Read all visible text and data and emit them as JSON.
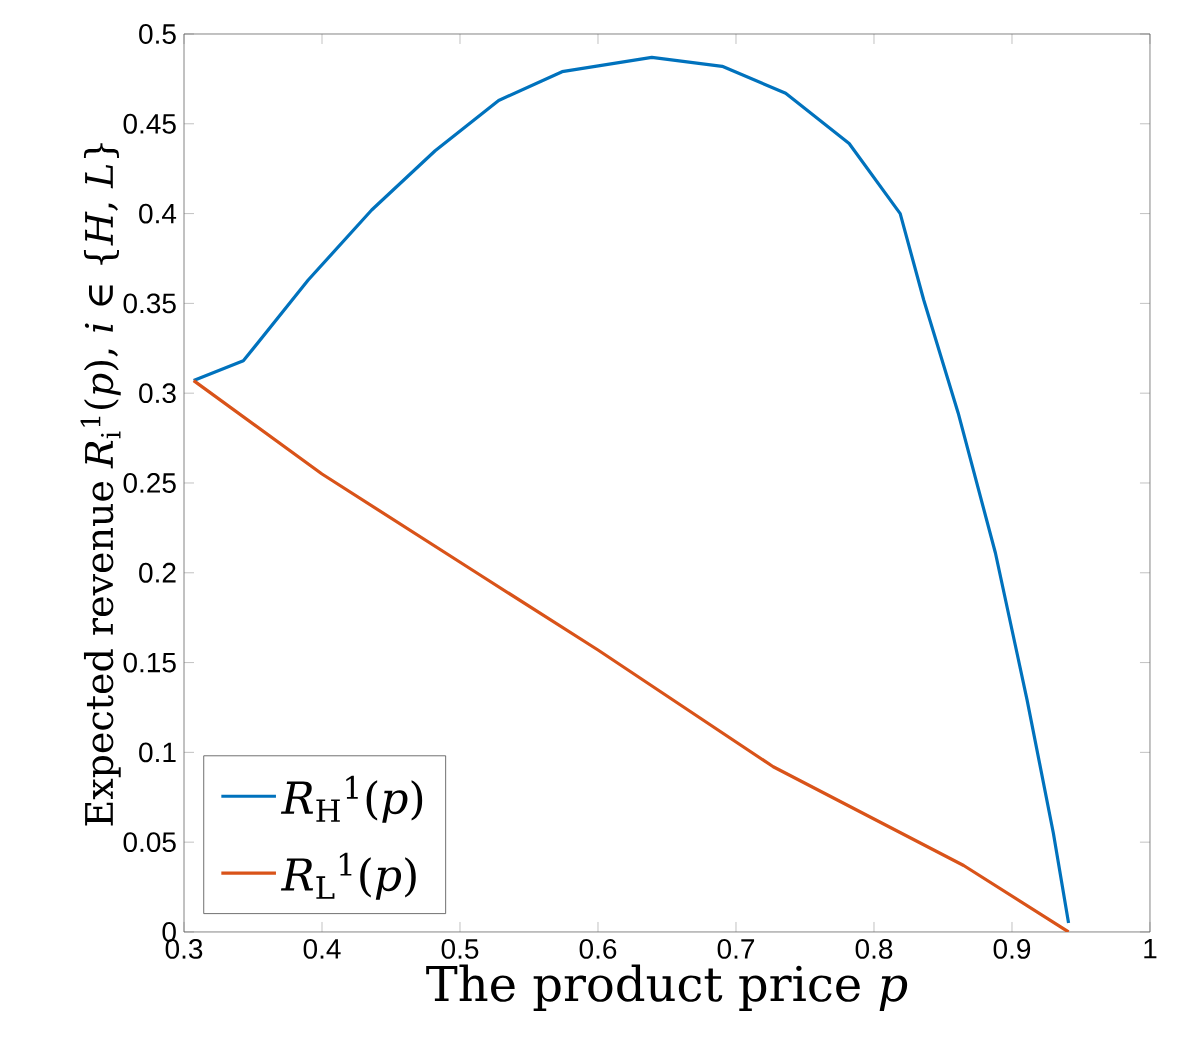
{
  "chart_data": {
    "type": "line",
    "xlabel": "The product price *p*",
    "ylabel": "Expected revenue *R*$_{i}$$^{1}$(*p*), *i* ∈ {*H*, *L*}",
    "xlim": [
      0.3,
      1
    ],
    "xticks": [
      0.3,
      0.4,
      0.5,
      0.6,
      0.7,
      0.8,
      0.9,
      1
    ],
    "ylim": [
      0,
      0.5
    ],
    "yticks": [
      0,
      0.05,
      0.1,
      0.15,
      0.2,
      0.25,
      0.3,
      0.35,
      0.4,
      0.45,
      0.5
    ],
    "legend": "bottom left",
    "series": [
      {
        "name": "*R*$_{H}$$^{1}$(*p*)",
        "color": "#0072bd",
        "x": [
          0.307,
          0.343,
          0.39,
          0.436,
          0.482,
          0.528,
          0.574,
          0.639,
          0.69,
          0.736,
          0.782,
          0.819,
          0.836,
          0.861,
          0.888,
          0.911,
          0.93,
          0.941
        ],
        "values": [
          0.307,
          0.318,
          0.363,
          0.402,
          0.435,
          0.463,
          0.479,
          0.487,
          0.482,
          0.467,
          0.439,
          0.4,
          0.352,
          0.289,
          0.211,
          0.129,
          0.055,
          0.005
        ]
      },
      {
        "name": "*R*$_{L}$$^{1}$(*p*)",
        "color": "#d95319",
        "x": [
          0.307,
          0.4,
          0.512,
          0.6,
          0.727,
          0.865,
          0.941
        ],
        "values": [
          0.307,
          0.255,
          0.2,
          0.157,
          0.092,
          0.037,
          0
        ]
      }
    ]
  }
}
